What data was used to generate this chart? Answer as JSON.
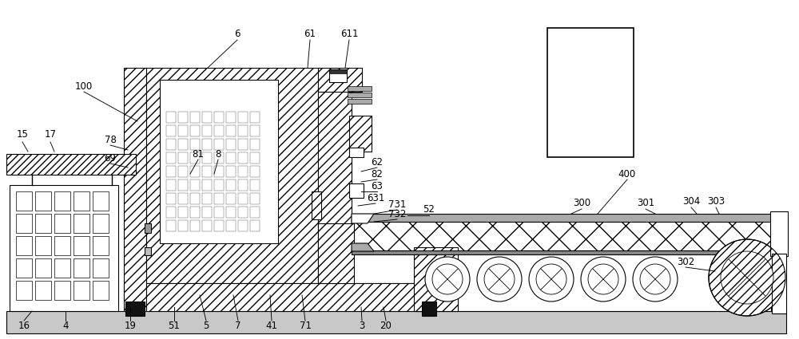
{
  "bg": "#ffffff",
  "lc": "#000000",
  "fig_w": 10.0,
  "fig_h": 4.25,
  "labels": [
    [
      "100",
      105,
      108
    ],
    [
      "6",
      297,
      42
    ],
    [
      "61",
      388,
      42
    ],
    [
      "611",
      437,
      42
    ],
    [
      "15",
      28,
      168
    ],
    [
      "17",
      63,
      168
    ],
    [
      "78",
      138,
      175
    ],
    [
      "69",
      138,
      198
    ],
    [
      "81",
      248,
      193
    ],
    [
      "8",
      273,
      193
    ],
    [
      "62",
      472,
      203
    ],
    [
      "82",
      472,
      218
    ],
    [
      "63",
      472,
      233
    ],
    [
      "631",
      470,
      248
    ],
    [
      "731",
      497,
      256
    ],
    [
      "732",
      497,
      268
    ],
    [
      "52",
      537,
      263
    ],
    [
      "400",
      785,
      218
    ],
    [
      "300",
      728,
      255
    ],
    [
      "301",
      808,
      255
    ],
    [
      "304",
      865,
      253
    ],
    [
      "303",
      896,
      253
    ],
    [
      "302",
      858,
      328
    ],
    [
      "16",
      30,
      408
    ],
    [
      "4",
      82,
      408
    ],
    [
      "19",
      163,
      408
    ],
    [
      "51",
      218,
      408
    ],
    [
      "5",
      258,
      408
    ],
    [
      "7",
      298,
      408
    ],
    [
      "41",
      340,
      408
    ],
    [
      "71",
      382,
      408
    ],
    [
      "3",
      453,
      408
    ],
    [
      "20",
      483,
      408
    ]
  ],
  "leader_lines": [
    [
      105,
      115,
      172,
      152
    ],
    [
      297,
      50,
      260,
      85
    ],
    [
      388,
      50,
      385,
      85
    ],
    [
      437,
      50,
      432,
      85
    ],
    [
      28,
      178,
      35,
      190
    ],
    [
      63,
      178,
      68,
      190
    ],
    [
      138,
      182,
      160,
      188
    ],
    [
      138,
      205,
      160,
      210
    ],
    [
      248,
      200,
      238,
      218
    ],
    [
      273,
      200,
      268,
      218
    ],
    [
      472,
      210,
      452,
      215
    ],
    [
      472,
      225,
      452,
      228
    ],
    [
      472,
      240,
      452,
      240
    ],
    [
      470,
      255,
      448,
      258
    ],
    [
      497,
      263,
      468,
      268
    ],
    [
      497,
      275,
      468,
      278
    ],
    [
      537,
      270,
      510,
      270
    ],
    [
      785,
      225,
      748,
      268
    ],
    [
      728,
      262,
      715,
      268
    ],
    [
      808,
      262,
      820,
      268
    ],
    [
      865,
      260,
      872,
      268
    ],
    [
      896,
      260,
      900,
      268
    ],
    [
      858,
      335,
      895,
      340
    ],
    [
      30,
      402,
      40,
      390
    ],
    [
      82,
      402,
      82,
      390
    ],
    [
      163,
      402,
      163,
      385
    ],
    [
      218,
      402,
      218,
      385
    ],
    [
      258,
      402,
      250,
      370
    ],
    [
      298,
      402,
      292,
      370
    ],
    [
      340,
      402,
      338,
      370
    ],
    [
      382,
      402,
      378,
      370
    ],
    [
      453,
      402,
      452,
      385
    ],
    [
      483,
      402,
      480,
      385
    ]
  ]
}
